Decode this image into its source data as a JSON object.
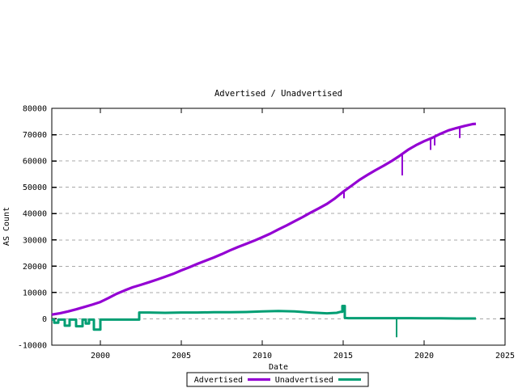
{
  "window": {
    "background": "#ffffff"
  },
  "chart_data": {
    "type": "line",
    "title": "Advertised / Unadvertised",
    "xlabel": "Date",
    "ylabel": "AS Count",
    "xlim": [
      1997,
      2025
    ],
    "ylim": [
      -10000,
      80000
    ],
    "xticks": [
      2000,
      2005,
      2010,
      2015,
      2020,
      2025
    ],
    "yticks": [
      -10000,
      0,
      10000,
      20000,
      30000,
      40000,
      50000,
      60000,
      70000,
      80000
    ],
    "grid": {
      "horizontal": true,
      "vertical": false,
      "style": "dashed",
      "color": "#a8a8a8"
    },
    "legend_position": "bottom-center-outside",
    "border_color": "#000000",
    "series": [
      {
        "name": "Advertised",
        "color": "#9400d3",
        "points": [
          [
            1997.0,
            1600
          ],
          [
            1997.5,
            2100
          ],
          [
            1998.0,
            2800
          ],
          [
            1998.5,
            3600
          ],
          [
            1999.0,
            4500
          ],
          [
            1999.5,
            5400
          ],
          [
            2000.0,
            6400
          ],
          [
            2000.5,
            7900
          ],
          [
            2001.0,
            9500
          ],
          [
            2001.5,
            10800
          ],
          [
            2002.0,
            12000
          ],
          [
            2002.5,
            12900
          ],
          [
            2003.0,
            13900
          ],
          [
            2003.5,
            14900
          ],
          [
            2004.0,
            16000
          ],
          [
            2004.5,
            17100
          ],
          [
            2005.0,
            18400
          ],
          [
            2005.5,
            19600
          ],
          [
            2006.0,
            20900
          ],
          [
            2006.5,
            22100
          ],
          [
            2007.0,
            23300
          ],
          [
            2007.5,
            24600
          ],
          [
            2008.0,
            26000
          ],
          [
            2008.5,
            27300
          ],
          [
            2009.0,
            28500
          ],
          [
            2009.5,
            29700
          ],
          [
            2010.0,
            31000
          ],
          [
            2010.5,
            32400
          ],
          [
            2011.0,
            34000
          ],
          [
            2011.5,
            35500
          ],
          [
            2012.0,
            37100
          ],
          [
            2012.5,
            38700
          ],
          [
            2013.0,
            40400
          ],
          [
            2013.5,
            42000
          ],
          [
            2014.0,
            43700
          ],
          [
            2014.5,
            45800
          ],
          [
            2015.0,
            48300
          ],
          [
            2015.5,
            50500
          ],
          [
            2016.0,
            52800
          ],
          [
            2016.5,
            54700
          ],
          [
            2017.0,
            56500
          ],
          [
            2017.5,
            58200
          ],
          [
            2018.0,
            60000
          ],
          [
            2018.5,
            62000
          ],
          [
            2019.0,
            64200
          ],
          [
            2019.5,
            66000
          ],
          [
            2020.0,
            67500
          ],
          [
            2020.5,
            68800
          ],
          [
            2021.0,
            70300
          ],
          [
            2021.5,
            71600
          ],
          [
            2022.0,
            72500
          ],
          [
            2022.5,
            73300
          ],
          [
            2023.0,
            74000
          ],
          [
            2023.2,
            74100
          ]
        ],
        "dip_spikes": [
          [
            2014.9,
            47300
          ],
          [
            2015.05,
            45800
          ],
          [
            2018.65,
            54500
          ],
          [
            2020.4,
            64200
          ],
          [
            2020.65,
            65900
          ],
          [
            2022.2,
            68700
          ]
        ]
      },
      {
        "name": "Unadvertised",
        "color": "#009e73",
        "points": [
          [
            1997.0,
            -300
          ],
          [
            1997.15,
            -300
          ],
          [
            1997.15,
            -1500
          ],
          [
            1997.4,
            -1500
          ],
          [
            1997.4,
            -300
          ],
          [
            1997.8,
            -300
          ],
          [
            1997.8,
            -2600
          ],
          [
            1998.1,
            -2600
          ],
          [
            1998.1,
            -300
          ],
          [
            1998.5,
            -300
          ],
          [
            1998.5,
            -2800
          ],
          [
            1998.9,
            -2800
          ],
          [
            1998.9,
            -300
          ],
          [
            1999.1,
            -300
          ],
          [
            1999.1,
            -1800
          ],
          [
            1999.3,
            -1800
          ],
          [
            1999.3,
            -300
          ],
          [
            1999.6,
            -300
          ],
          [
            1999.6,
            -4100
          ],
          [
            2000.0,
            -4100
          ],
          [
            2000.0,
            -300
          ],
          [
            2002.4,
            -300
          ],
          [
            2002.4,
            2400
          ],
          [
            2003.0,
            2400
          ],
          [
            2004.0,
            2300
          ],
          [
            2005.0,
            2400
          ],
          [
            2006.0,
            2400
          ],
          [
            2007.0,
            2500
          ],
          [
            2008.0,
            2500
          ],
          [
            2009.0,
            2600
          ],
          [
            2010.0,
            2800
          ],
          [
            2011.0,
            3000
          ],
          [
            2012.0,
            2800
          ],
          [
            2013.0,
            2400
          ],
          [
            2014.0,
            2100
          ],
          [
            2014.6,
            2300
          ],
          [
            2014.85,
            2700
          ],
          [
            2014.95,
            2700
          ],
          [
            2014.95,
            4900
          ],
          [
            2015.1,
            4900
          ],
          [
            2015.1,
            400
          ],
          [
            2015.3,
            250
          ],
          [
            2016.0,
            250
          ],
          [
            2017.0,
            250
          ],
          [
            2018.0,
            250
          ],
          [
            2019.0,
            250
          ],
          [
            2020.0,
            200
          ],
          [
            2021.0,
            200
          ],
          [
            2022.0,
            150
          ],
          [
            2023.2,
            150
          ]
        ],
        "dip_spikes": [
          [
            2018.3,
            -7000
          ]
        ]
      }
    ]
  }
}
